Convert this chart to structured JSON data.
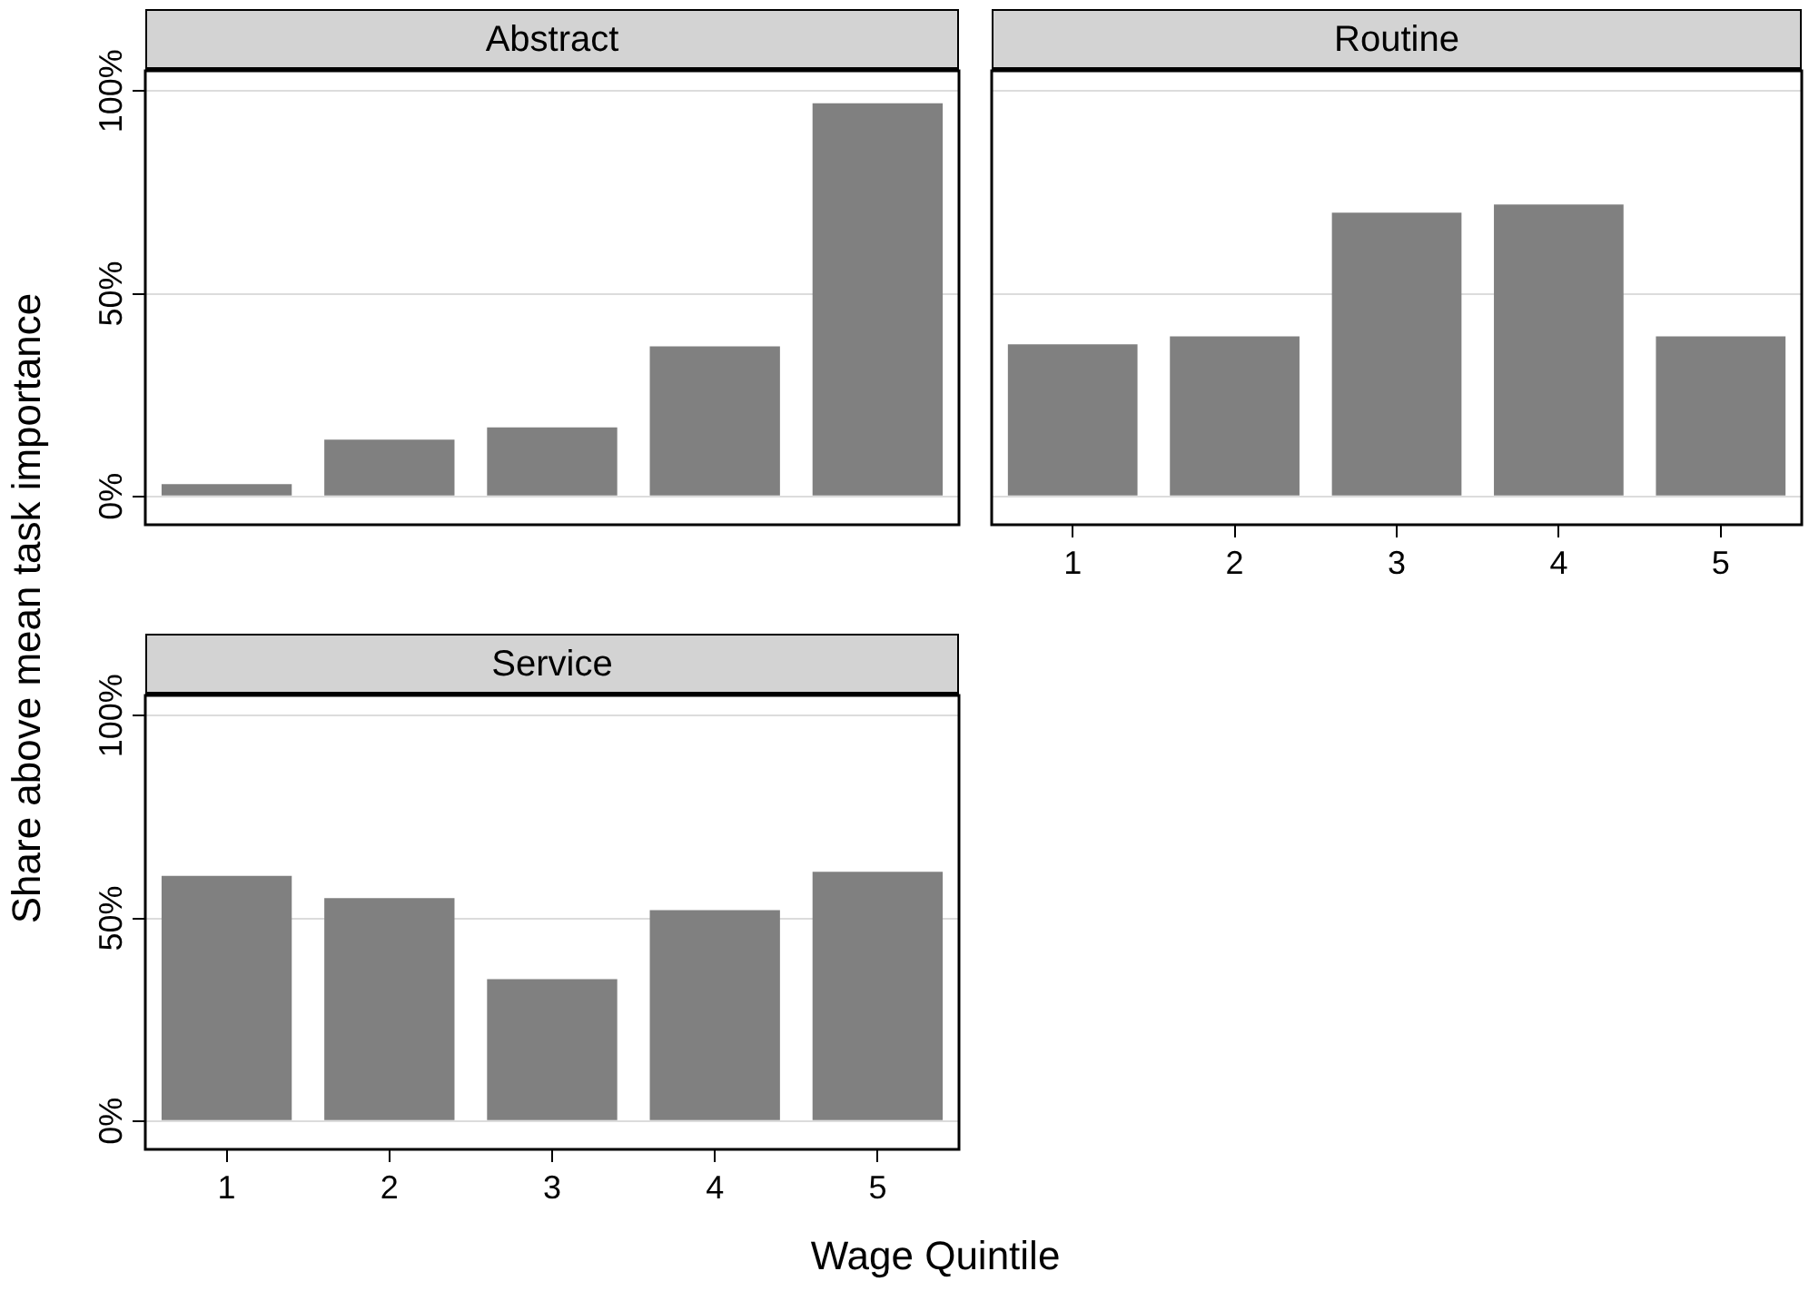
{
  "chart_data": [
    {
      "type": "bar",
      "title": "Abstract",
      "ylabel": "Share above mean task importance",
      "categories": [
        "1",
        "2",
        "3",
        "4",
        "5"
      ],
      "values": [
        3,
        14,
        17,
        37,
        97
      ],
      "color": "#808080",
      "ylim": [
        -7,
        105
      ],
      "yticks": [
        {
          "value": 0,
          "label": "0%"
        },
        {
          "value": 50,
          "label": "50%"
        },
        {
          "value": 100,
          "label": "100%"
        }
      ],
      "grid": "y",
      "tick_labels": "y"
    },
    {
      "type": "bar",
      "title": "Routine",
      "categories": [
        "1",
        "2",
        "3",
        "4",
        "5"
      ],
      "values": [
        37.5,
        39.5,
        70,
        72,
        39.5
      ],
      "color": "#808080",
      "ylim": [
        -7,
        105
      ],
      "yticks": [
        {
          "value": 0,
          "label": null
        },
        {
          "value": 50,
          "label": null
        },
        {
          "value": 100,
          "label": null
        }
      ],
      "grid": "y",
      "tick_labels": "x"
    },
    {
      "type": "bar",
      "title": "Service",
      "xlabel": "Wage Quintile",
      "categories": [
        "1",
        "2",
        "3",
        "4",
        "5"
      ],
      "values": [
        60.5,
        55,
        35,
        52,
        61.5
      ],
      "color": "#808080",
      "ylim": [
        -7,
        105
      ],
      "yticks": [
        {
          "value": 0,
          "label": "0%"
        },
        {
          "value": 50,
          "label": "50%"
        },
        {
          "value": 100,
          "label": "100%"
        }
      ],
      "grid": "y"
    }
  ]
}
